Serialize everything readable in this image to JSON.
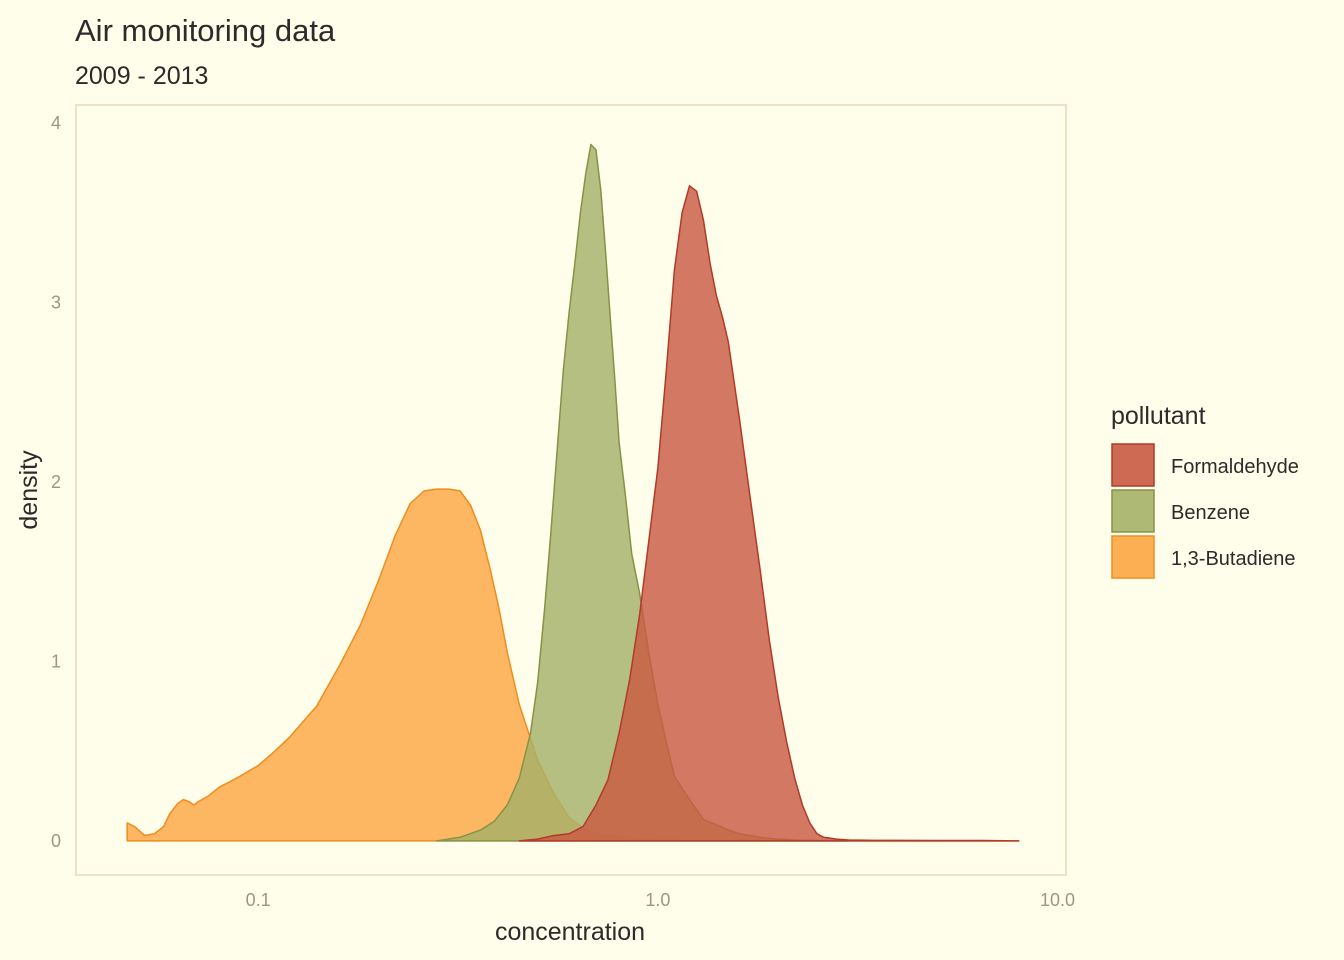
{
  "chart_data": {
    "type": "area",
    "subtype": "density",
    "title": "Air monitoring data",
    "subtitle": "2009 - 2013",
    "xlabel": "concentration",
    "ylabel": "density",
    "x_scale": "log10",
    "xlim": [
      0.035,
      10.5
    ],
    "ylim": [
      -0.19,
      4.1
    ],
    "x_ticks": [
      0.1,
      1.0,
      10.0
    ],
    "x_tick_labels": [
      "0.1",
      "1.0",
      "10.0"
    ],
    "y_ticks": [
      0,
      1,
      2,
      3,
      4
    ],
    "y_tick_labels": [
      "0",
      "1",
      "2",
      "3",
      "4"
    ],
    "grid": false,
    "panel_border_color": "#ece3c6",
    "legend": {
      "title": "pollutant",
      "position": "right",
      "entries": [
        "Formaldehyde",
        "Benzene",
        "1,3-Butadiene"
      ]
    },
    "series": [
      {
        "name": "1,3-Butadiene",
        "fill": "#fda642",
        "stroke": "#f08d1e",
        "x": [
          0.047,
          0.049,
          0.052,
          0.055,
          0.058,
          0.06,
          0.063,
          0.065,
          0.067,
          0.069,
          0.071,
          0.075,
          0.08,
          0.085,
          0.09,
          0.1,
          0.11,
          0.12,
          0.14,
          0.16,
          0.18,
          0.2,
          0.22,
          0.24,
          0.26,
          0.28,
          0.3,
          0.32,
          0.34,
          0.36,
          0.38,
          0.4,
          0.42,
          0.45,
          0.5,
          0.55,
          0.6,
          0.65,
          0.7,
          0.8,
          0.9,
          1.0,
          1.2,
          1.5,
          2.0,
          3.0,
          5.0,
          8.0
        ],
        "y": [
          0.1,
          0.08,
          0.03,
          0.04,
          0.08,
          0.15,
          0.21,
          0.23,
          0.22,
          0.2,
          0.22,
          0.25,
          0.3,
          0.33,
          0.36,
          0.42,
          0.5,
          0.58,
          0.75,
          0.98,
          1.2,
          1.45,
          1.7,
          1.88,
          1.95,
          1.96,
          1.96,
          1.95,
          1.87,
          1.73,
          1.52,
          1.3,
          1.05,
          0.76,
          0.45,
          0.26,
          0.13,
          0.07,
          0.04,
          0.02,
          0.01,
          0.005,
          0.003,
          0.002,
          0.001,
          0.001,
          0.001,
          0.0
        ]
      },
      {
        "name": "Benzene",
        "fill": "#a5b169",
        "stroke": "#879247",
        "x": [
          0.28,
          0.32,
          0.36,
          0.39,
          0.42,
          0.45,
          0.48,
          0.5,
          0.52,
          0.54,
          0.56,
          0.58,
          0.6,
          0.62,
          0.64,
          0.66,
          0.68,
          0.7,
          0.72,
          0.74,
          0.76,
          0.78,
          0.8,
          0.83,
          0.86,
          0.9,
          0.95,
          1.0,
          1.05,
          1.1,
          1.2,
          1.3,
          1.4,
          1.5,
          1.6,
          1.8,
          2.0,
          2.2,
          2.5,
          3.0
        ],
        "y": [
          0.0,
          0.02,
          0.06,
          0.11,
          0.2,
          0.35,
          0.6,
          0.88,
          1.28,
          1.72,
          2.18,
          2.62,
          2.95,
          3.22,
          3.5,
          3.72,
          3.88,
          3.85,
          3.62,
          3.28,
          2.92,
          2.58,
          2.22,
          1.92,
          1.6,
          1.38,
          1.04,
          0.76,
          0.55,
          0.36,
          0.23,
          0.12,
          0.09,
          0.06,
          0.04,
          0.02,
          0.01,
          0.005,
          0.002,
          0.0
        ]
      },
      {
        "name": "Formaldehyde",
        "fill": "#c95a43",
        "stroke": "#b23a2a",
        "x": [
          0.45,
          0.5,
          0.55,
          0.6,
          0.65,
          0.7,
          0.75,
          0.8,
          0.85,
          0.9,
          0.95,
          1.0,
          1.05,
          1.1,
          1.15,
          1.2,
          1.25,
          1.3,
          1.35,
          1.4,
          1.45,
          1.5,
          1.6,
          1.7,
          1.8,
          1.9,
          2.0,
          2.1,
          2.2,
          2.3,
          2.4,
          2.5,
          2.6,
          2.8,
          3.0,
          3.5,
          4.0,
          5.0,
          6.5,
          8.0
        ],
        "y": [
          0.0,
          0.01,
          0.03,
          0.04,
          0.08,
          0.2,
          0.34,
          0.6,
          0.9,
          1.26,
          1.68,
          2.08,
          2.62,
          3.18,
          3.5,
          3.65,
          3.62,
          3.46,
          3.22,
          3.04,
          2.92,
          2.78,
          2.35,
          1.92,
          1.52,
          1.12,
          0.8,
          0.55,
          0.35,
          0.2,
          0.1,
          0.04,
          0.02,
          0.01,
          0.005,
          0.003,
          0.003,
          0.002,
          0.002,
          0.0
        ]
      }
    ]
  }
}
